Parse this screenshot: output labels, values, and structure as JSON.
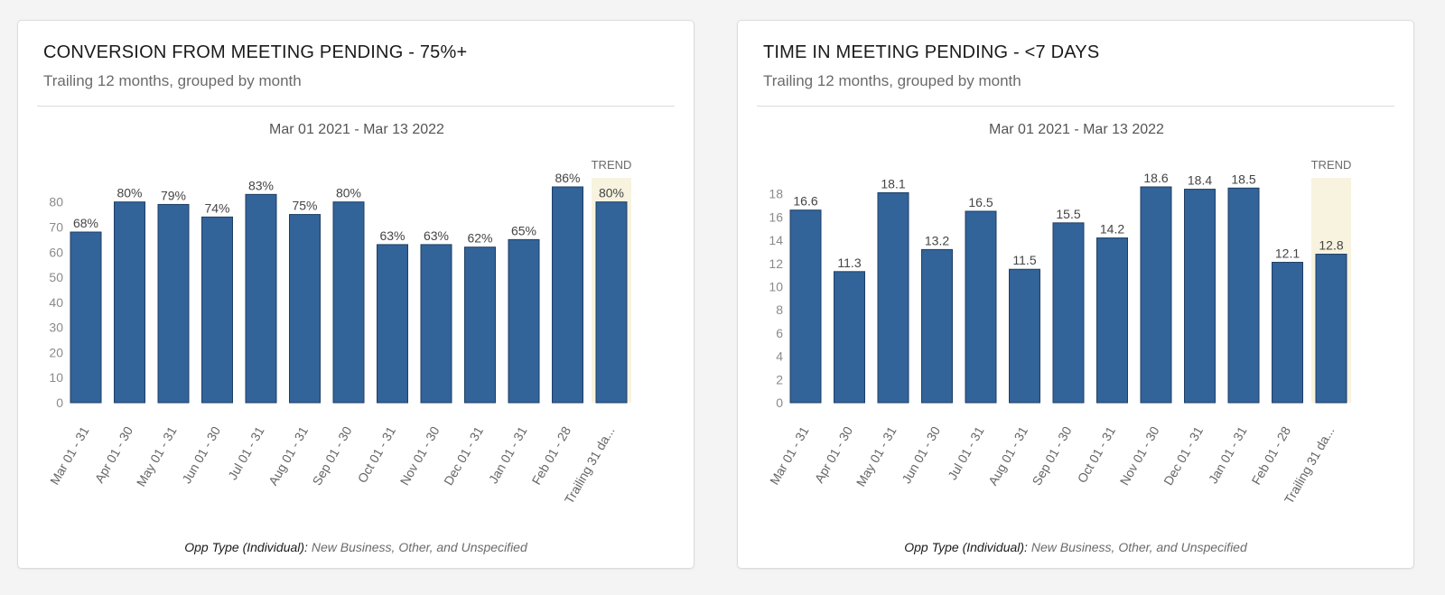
{
  "colors": {
    "bar": "#326399",
    "bar_stroke": "#1e3f66",
    "trend_bg": "#f7f3df",
    "tick": "#8a8a8a",
    "label": "#444444"
  },
  "cards": [
    {
      "title": "CONVERSION FROM MEETING PENDING - 75%+",
      "subtitle": "Trailing 12 months, grouped by month",
      "footer_label": "Opp Type (Individual):",
      "footer_value": " New Business, Other, and Unspecified"
    },
    {
      "title": "TIME IN MEETING PENDING - <7 DAYS",
      "subtitle": "Trailing 12 months, grouped by month",
      "footer_label": "Opp Type (Individual):",
      "footer_value": " New Business, Other, and Unspecified"
    }
  ],
  "chart_data": [
    {
      "type": "bar",
      "title": "CONVERSION FROM MEETING PENDING - 75%+",
      "subtitle": "Trailing 12 months, grouped by month",
      "date_range": "Mar 01 2021 - Mar 13 2022",
      "categories": [
        "Mar 01 - 31",
        "Apr 01 - 30",
        "May 01 - 31",
        "Jun 01 - 30",
        "Jul 01 - 31",
        "Aug 01 - 31",
        "Sep 01 - 30",
        "Oct 01 - 31",
        "Nov 01 - 30",
        "Dec 01 - 31",
        "Jan 01 - 31",
        "Feb 01 - 28",
        "Trailing 31 da..."
      ],
      "values": [
        68,
        80,
        79,
        74,
        83,
        75,
        80,
        63,
        63,
        62,
        65,
        86,
        80
      ],
      "data_labels": [
        "68%",
        "80%",
        "79%",
        "74%",
        "83%",
        "75%",
        "80%",
        "63%",
        "63%",
        "62%",
        "65%",
        "86%",
        "80%"
      ],
      "trend_index": 12,
      "trend_label": "TREND",
      "y_ticks": [
        0,
        10,
        20,
        30,
        40,
        50,
        60,
        70,
        80
      ],
      "y_tick_labels": [
        "0",
        "10",
        "20",
        "30",
        "40",
        "50",
        "60",
        "70",
        "80"
      ],
      "ylim": [
        0,
        86
      ],
      "grid": false,
      "legend": "none"
    },
    {
      "type": "bar",
      "title": "TIME IN MEETING PENDING - <7 DAYS",
      "subtitle": "Trailing 12 months, grouped by month",
      "date_range": "Mar 01 2021 - Mar 13 2022",
      "categories": [
        "Mar 01 - 31",
        "Apr 01 - 30",
        "May 01 - 31",
        "Jun 01 - 30",
        "Jul 01 - 31",
        "Aug 01 - 31",
        "Sep 01 - 30",
        "Oct 01 - 31",
        "Nov 01 - 30",
        "Dec 01 - 31",
        "Jan 01 - 31",
        "Feb 01 - 28",
        "Trailing 31 da..."
      ],
      "values": [
        16.6,
        11.3,
        18.1,
        13.2,
        16.5,
        11.5,
        15.5,
        14.2,
        18.6,
        18.4,
        18.5,
        12.1,
        12.8
      ],
      "data_labels": [
        "16.6",
        "11.3",
        "18.1",
        "13.2",
        "16.5",
        "11.5",
        "15.5",
        "14.2",
        "18.6",
        "18.4",
        "18.5",
        "12.1",
        "12.8"
      ],
      "trend_index": 12,
      "trend_label": "TREND",
      "y_ticks": [
        0,
        2,
        4,
        6,
        8,
        10,
        12,
        14,
        16,
        18
      ],
      "y_tick_labels": [
        "0",
        "2",
        "4",
        "6",
        "8",
        "10",
        "12",
        "14",
        "16",
        "18"
      ],
      "ylim": [
        0,
        18.6
      ],
      "grid": false,
      "legend": "none"
    }
  ]
}
